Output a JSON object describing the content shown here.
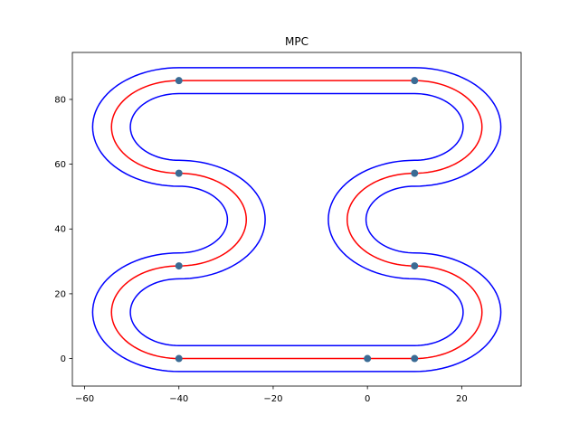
{
  "chart_data": {
    "type": "line",
    "title": "MPC",
    "xlabel": "",
    "ylabel": "",
    "xlim": [
      -62.6,
      32.6
    ],
    "ylim": [
      -8.5,
      94.5
    ],
    "xticks": [
      -60,
      -40,
      -20,
      0,
      20
    ],
    "yticks": [
      0,
      20,
      40,
      60,
      80
    ],
    "grid": false,
    "legend": "none",
    "track": {
      "centerline": {
        "straights": [
          {
            "y": 0,
            "x_from": -40,
            "x_to": 10
          },
          {
            "y": 85.8,
            "x_from": -40,
            "x_to": 10
          }
        ],
        "arcs": [
          {
            "center": [
              -40,
              14.3
            ],
            "radius": 14.3,
            "side": "left"
          },
          {
            "center": [
              -40,
              42.9
            ],
            "radius": 14.3,
            "side": "right"
          },
          {
            "center": [
              -40,
              71.5
            ],
            "radius": 14.3,
            "side": "left"
          },
          {
            "center": [
              10,
              14.3
            ],
            "radius": 14.3,
            "side": "right"
          },
          {
            "center": [
              10,
              42.9
            ],
            "radius": 14.3,
            "side": "left"
          },
          {
            "center": [
              10,
              71.5
            ],
            "radius": 14.3,
            "side": "right"
          }
        ]
      },
      "boundary_offset": 4,
      "boundary_color": "#0000ff",
      "path_color": "#ff0000"
    },
    "waypoints": {
      "x": [
        -40,
        0,
        10,
        -40,
        10,
        -40,
        10,
        -40,
        10
      ],
      "y": [
        0,
        0,
        0,
        28.6,
        28.6,
        57.2,
        57.2,
        85.8,
        85.8
      ],
      "color": "#3a6b94"
    }
  }
}
